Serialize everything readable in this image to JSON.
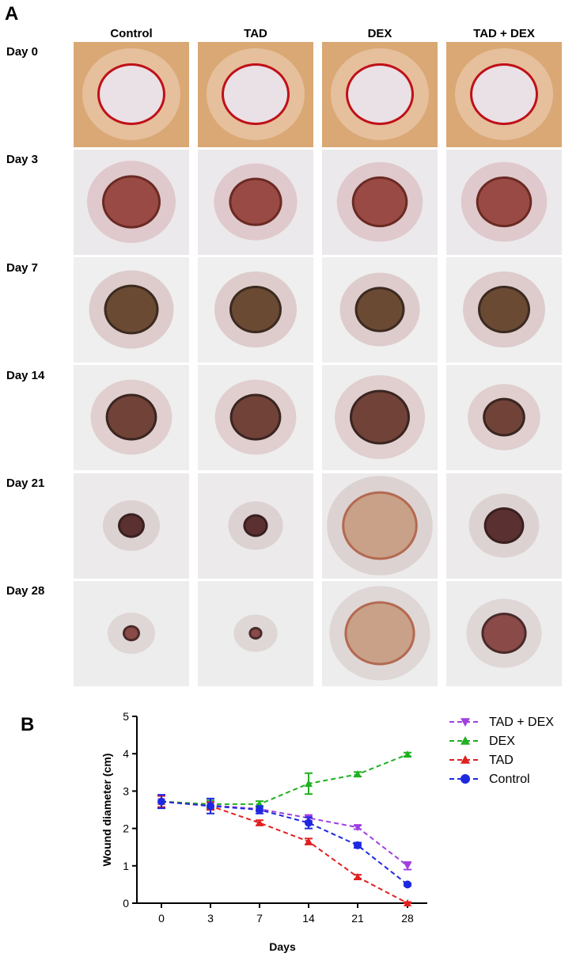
{
  "panel_a": {
    "letter": "A",
    "columns": [
      "Control",
      "TAD",
      "DEX",
      "TAD + DEX"
    ],
    "rows": [
      "Day 0",
      "Day 3",
      "Day 7",
      "Day 14",
      "Day 21",
      "Day 28"
    ]
  },
  "panel_b": {
    "letter": "B"
  },
  "chart_data": {
    "type": "line",
    "xlabel": "Days",
    "ylabel": "Wound diameter (cm)",
    "categories": [
      "0",
      "3",
      "7",
      "14",
      "21",
      "28"
    ],
    "ylim": [
      0,
      5
    ],
    "yticks": [
      "0",
      "1",
      "2",
      "3",
      "4",
      "5"
    ],
    "legend_position": "right",
    "series": [
      {
        "name": "TAD + DEX",
        "color": "#a040e0",
        "marker": "triangle-down",
        "values": [
          2.72,
          2.62,
          2.52,
          2.28,
          2.03,
          1.0
        ],
        "errors": [
          0.15,
          0.1,
          0.06,
          0.08,
          0.05,
          0.1
        ]
      },
      {
        "name": "DEX",
        "color": "#20b020",
        "marker": "triangle-up",
        "values": [
          2.72,
          2.65,
          2.65,
          3.2,
          3.45,
          3.98
        ],
        "errors": [
          0.15,
          0.1,
          0.08,
          0.28,
          0.06,
          0.05
        ]
      },
      {
        "name": "TAD",
        "color": "#e02020",
        "marker": "triangle-up",
        "values": [
          2.72,
          2.6,
          2.15,
          1.65,
          0.7,
          0.0
        ],
        "errors": [
          0.15,
          0.1,
          0.07,
          0.08,
          0.06,
          0.03
        ]
      },
      {
        "name": "Control",
        "color": "#1e28e0",
        "marker": "circle",
        "values": [
          2.72,
          2.6,
          2.5,
          2.15,
          1.55,
          0.5
        ],
        "errors": [
          0.18,
          0.2,
          0.1,
          0.15,
          0.07,
          0.03
        ]
      }
    ]
  }
}
